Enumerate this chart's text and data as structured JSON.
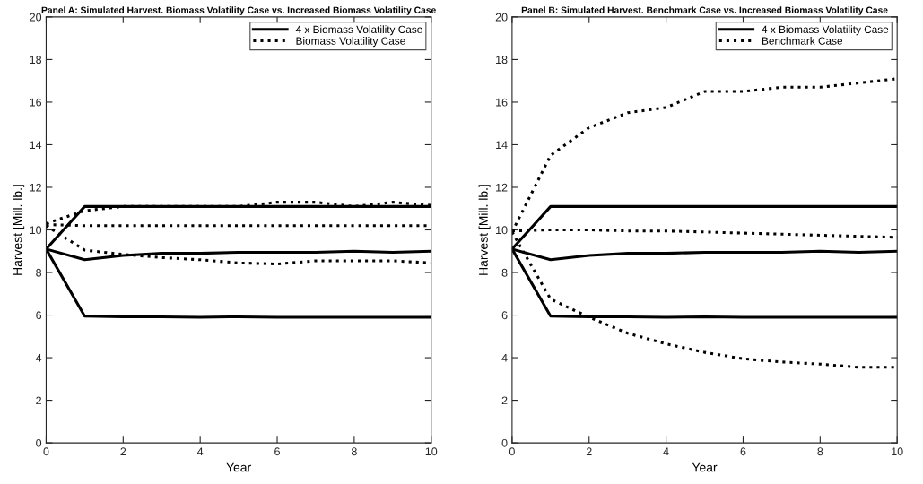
{
  "chart_data": [
    {
      "type": "line",
      "title": "Panel A: Simulated Harvest. Biomass Volatility Case vs. Increased Biomass Volatility Case",
      "xlabel": "Year",
      "ylabel": "Harvest [Mill. lb.]",
      "x": [
        0,
        1,
        2,
        3,
        4,
        5,
        6,
        7,
        8,
        9,
        10
      ],
      "xlim": [
        0,
        10
      ],
      "xticks": [
        0,
        2,
        4,
        6,
        8,
        10
      ],
      "ylim": [
        0,
        20
      ],
      "yticks": [
        0,
        2,
        4,
        6,
        8,
        10,
        12,
        14,
        16,
        18,
        20
      ],
      "legend": "top right",
      "grid": false,
      "series": [
        {
          "name": "4 x Biomass Volatility Case",
          "color": "#000000",
          "line_style": "solid",
          "values": [
            9.1,
            11.1,
            11.1,
            11.1,
            11.1,
            11.1,
            11.1,
            11.1,
            11.1,
            11.1,
            11.1
          ]
        },
        {
          "color": "#000000",
          "line_style": "solid",
          "values": [
            9.1,
            8.6,
            8.8,
            8.9,
            8.9,
            8.95,
            8.95,
            8.95,
            9.0,
            8.95,
            9.0
          ]
        },
        {
          "color": "#000000",
          "line_style": "solid",
          "values": [
            9.1,
            5.95,
            5.92,
            5.92,
            5.9,
            5.92,
            5.9,
            5.9,
            5.9,
            5.9,
            5.9
          ]
        },
        {
          "name": "Biomass Volatility Case",
          "color": "#000000",
          "line_style": "dotted",
          "values": [
            10.3,
            10.9,
            11.1,
            11.1,
            11.1,
            11.1,
            11.3,
            11.3,
            11.1,
            11.3,
            11.15
          ]
        },
        {
          "color": "#000000",
          "line_style": "dotted",
          "values": [
            10.25,
            10.2,
            10.2,
            10.2,
            10.2,
            10.2,
            10.2,
            10.2,
            10.2,
            10.2,
            10.2
          ]
        },
        {
          "color": "#000000",
          "line_style": "dotted",
          "values": [
            10.2,
            9.05,
            8.85,
            8.7,
            8.6,
            8.45,
            8.4,
            8.55,
            8.55,
            8.55,
            8.45
          ]
        }
      ]
    },
    {
      "type": "line",
      "title": "Panel B: Simulated Harvest. Benchmark Case vs. Increased Biomass Volatility Case",
      "xlabel": "Year",
      "ylabel": "Harvest [Mill. lb.]",
      "x": [
        0,
        1,
        2,
        3,
        4,
        5,
        6,
        7,
        8,
        9,
        10
      ],
      "xlim": [
        0,
        10
      ],
      "xticks": [
        0,
        2,
        4,
        6,
        8,
        10
      ],
      "ylim": [
        0,
        20
      ],
      "yticks": [
        0,
        2,
        4,
        6,
        8,
        10,
        12,
        14,
        16,
        18,
        20
      ],
      "legend": "top right",
      "grid": false,
      "series": [
        {
          "name": "4 x Biomass Volatility Case",
          "color": "#000000",
          "line_style": "solid",
          "values": [
            9.1,
            11.1,
            11.1,
            11.1,
            11.1,
            11.1,
            11.1,
            11.1,
            11.1,
            11.1,
            11.1
          ]
        },
        {
          "color": "#000000",
          "line_style": "solid",
          "values": [
            9.1,
            8.6,
            8.8,
            8.9,
            8.9,
            8.95,
            8.95,
            8.95,
            9.0,
            8.95,
            9.0
          ]
        },
        {
          "color": "#000000",
          "line_style": "solid",
          "values": [
            9.1,
            5.95,
            5.92,
            5.92,
            5.9,
            5.92,
            5.9,
            5.9,
            5.9,
            5.9,
            5.9
          ]
        },
        {
          "name": "Benchmark Case",
          "color": "#000000",
          "line_style": "dotted",
          "values": [
            9.9,
            13.5,
            14.8,
            15.5,
            15.75,
            16.5,
            16.5,
            16.7,
            16.7,
            16.9,
            17.1
          ]
        },
        {
          "color": "#000000",
          "line_style": "dotted",
          "values": [
            9.95,
            10.0,
            10.0,
            9.95,
            9.95,
            9.9,
            9.85,
            9.8,
            9.75,
            9.7,
            9.65
          ]
        },
        {
          "color": "#000000",
          "line_style": "dotted",
          "values": [
            9.9,
            6.75,
            5.9,
            5.15,
            4.65,
            4.25,
            3.95,
            3.8,
            3.7,
            3.55,
            3.55
          ]
        }
      ]
    }
  ]
}
